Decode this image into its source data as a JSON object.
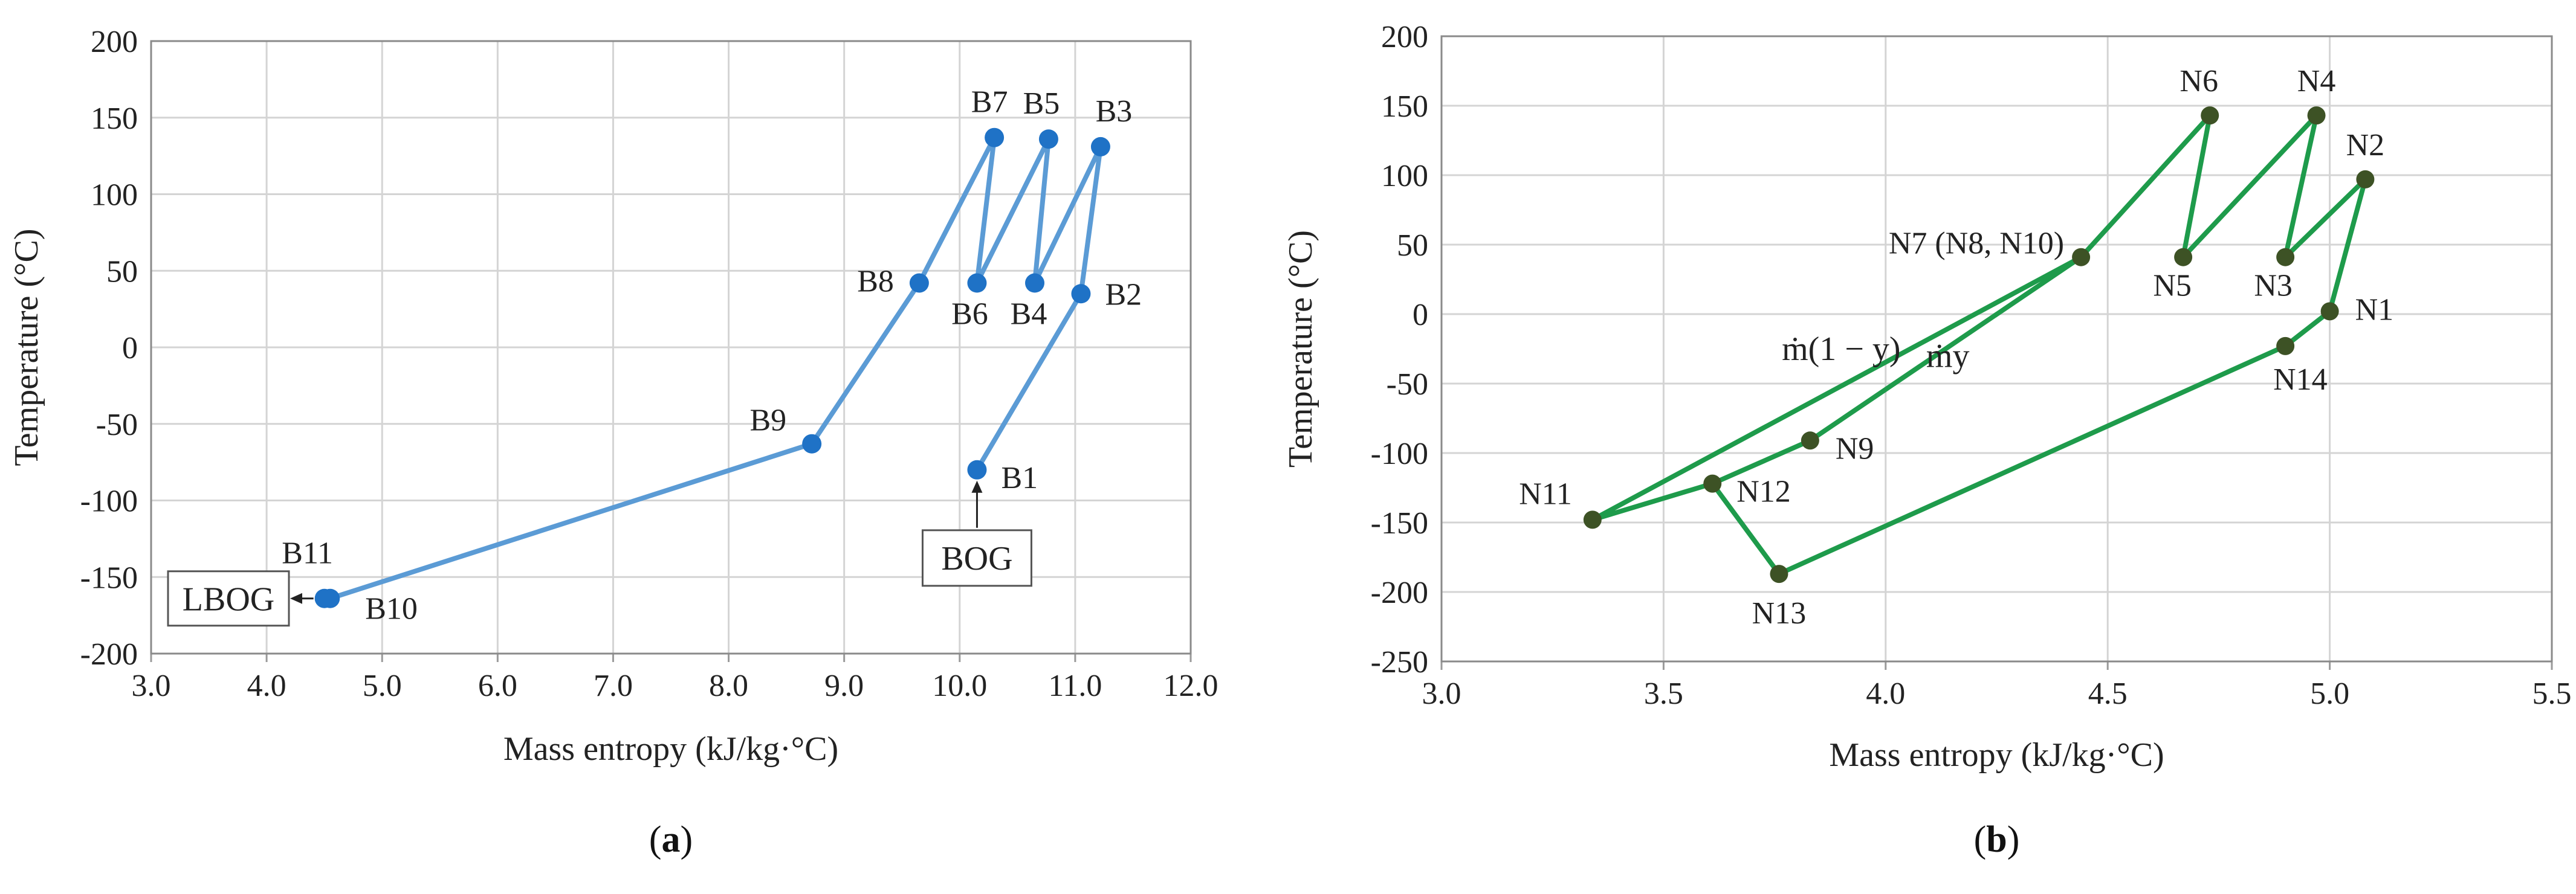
{
  "chart_data": [
    {
      "type": "line",
      "panel": "a",
      "caption": "a",
      "xlabel": "Mass entropy (kJ/kg·°C)",
      "ylabel": "Temperature (°C)",
      "xlim": [
        3.0,
        12.0
      ],
      "ylim": [
        -200,
        200
      ],
      "xticks": [
        "3.0",
        "4.0",
        "5.0",
        "6.0",
        "7.0",
        "8.0",
        "9.0",
        "10.0",
        "11.0",
        "12.0"
      ],
      "yticks": [
        "200",
        "150",
        "100",
        "50",
        "0",
        "-50",
        "-100",
        "-150",
        "-200"
      ],
      "grid": true,
      "color": "#5b9bd5",
      "points": [
        {
          "label": "B1",
          "x": 10.15,
          "y": -80
        },
        {
          "label": "B2",
          "x": 11.05,
          "y": 35
        },
        {
          "label": "B3",
          "x": 11.22,
          "y": 131
        },
        {
          "label": "B4",
          "x": 10.65,
          "y": 42
        },
        {
          "label": "B5",
          "x": 10.77,
          "y": 136
        },
        {
          "label": "B6",
          "x": 10.15,
          "y": 42
        },
        {
          "label": "B7",
          "x": 10.3,
          "y": 137
        },
        {
          "label": "B8",
          "x": 9.65,
          "y": 42
        },
        {
          "label": "B9",
          "x": 8.72,
          "y": -63
        },
        {
          "label": "B10",
          "x": 4.55,
          "y": -164
        },
        {
          "label": "B11",
          "x": 4.5,
          "y": -164
        }
      ],
      "path": [
        "B1",
        "B2",
        "B3",
        "B4",
        "B5",
        "B6",
        "B7",
        "B8",
        "B9",
        "B10"
      ],
      "boxes": [
        {
          "text": "BOG",
          "anchor": "B1"
        },
        {
          "text": "LBOG",
          "anchor": "B11"
        }
      ]
    },
    {
      "type": "line",
      "panel": "b",
      "caption": "b",
      "xlabel": "Mass entropy (kJ/kg·°C)",
      "ylabel": "Temperature (°C)",
      "xlim": [
        3.0,
        5.5
      ],
      "ylim": [
        -250,
        200
      ],
      "xticks": [
        "3.0",
        "3.5",
        "4.0",
        "4.5",
        "5.0",
        "5.5"
      ],
      "yticks": [
        "200",
        "150",
        "100",
        "50",
        "0",
        "-50",
        "-100",
        "-150",
        "-200",
        "-250"
      ],
      "grid": true,
      "color": "#1e9b4b",
      "marker_color": "#3d5225",
      "points": [
        {
          "label": "N1",
          "x": 5.0,
          "y": 2
        },
        {
          "label": "N2",
          "x": 5.08,
          "y": 97
        },
        {
          "label": "N3",
          "x": 4.9,
          "y": 41
        },
        {
          "label": "N4",
          "x": 4.97,
          "y": 143
        },
        {
          "label": "N5",
          "x": 4.67,
          "y": 41
        },
        {
          "label": "N6",
          "x": 4.73,
          "y": 143
        },
        {
          "label": "N7 (N8, N10)",
          "x": 4.44,
          "y": 41
        },
        {
          "label": "N9",
          "x": 3.83,
          "y": -91
        },
        {
          "label": "N11",
          "x": 3.34,
          "y": -148
        },
        {
          "label": "N12",
          "x": 3.61,
          "y": -122
        },
        {
          "label": "N13",
          "x": 3.76,
          "y": -187
        },
        {
          "label": "N14",
          "x": 4.9,
          "y": -23
        }
      ],
      "path": [
        "N1",
        "N2",
        "N3",
        "N4",
        "N5",
        "N6",
        "N7 (N8, N10)",
        "N9",
        "N12",
        "N11",
        "N7 (N8, N10)"
      ],
      "path2": [
        "N12",
        "N13",
        "N14",
        "N1"
      ],
      "annotations": [
        {
          "text": "ṁ(1 − y)",
          "x": 3.9,
          "y": -33
        },
        {
          "text": "ṁy",
          "x": 4.14,
          "y": -38
        }
      ]
    }
  ]
}
